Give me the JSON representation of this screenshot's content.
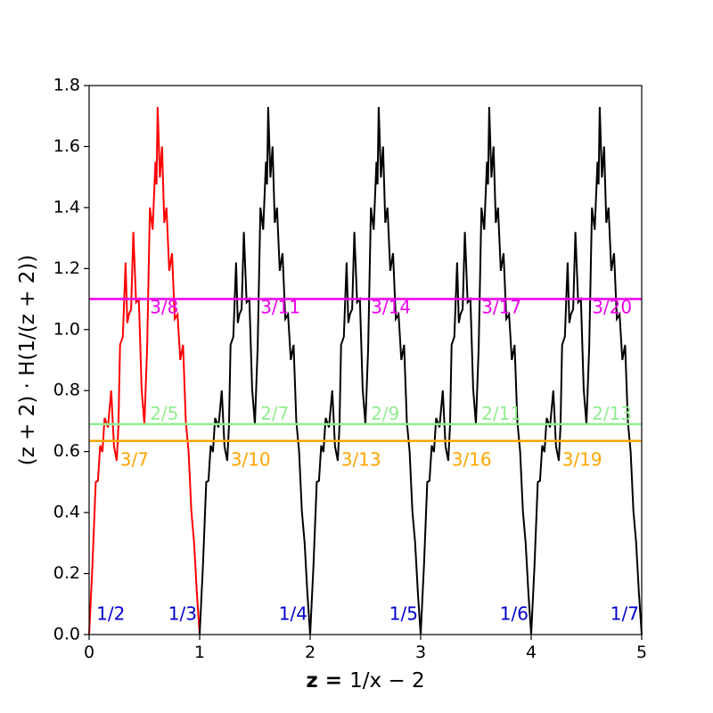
{
  "chart_data": {
    "type": "line",
    "title": "",
    "xlabel_prefix": "z = ",
    "xlabel_expr": "1/x − 2",
    "ylabel_expr": "(z + 2) · H(1/(z + 2))",
    "xlim": [
      0,
      5
    ],
    "ylim": [
      0,
      1.8
    ],
    "xticks": [
      "0",
      "1",
      "2",
      "3",
      "4",
      "5"
    ],
    "yticks": [
      "0.0",
      "0.2",
      "0.4",
      "0.6",
      "0.8",
      "1.0",
      "1.2",
      "1.4",
      "1.6",
      "1.8"
    ],
    "grid": false,
    "colors": {
      "first_period": "#ff0000",
      "other_periods": "#000000"
    },
    "curve_pattern": {
      "period": 1,
      "description_points_x": [
        0.0,
        0.06,
        0.1,
        0.14,
        0.2,
        0.25,
        0.28,
        0.33,
        0.36,
        0.4,
        0.45,
        0.5,
        0.55,
        0.6,
        0.62,
        0.66,
        0.7,
        0.75,
        0.8,
        0.85,
        0.9,
        0.95,
        1.0
      ],
      "description_points_y": [
        0.0,
        0.5,
        0.62,
        0.71,
        0.8,
        0.57,
        0.95,
        1.22,
        1.05,
        1.32,
        1.1,
        0.69,
        1.4,
        1.55,
        1.73,
        1.6,
        1.4,
        1.25,
        1.05,
        0.95,
        0.6,
        0.3,
        0.0
      ]
    },
    "hlines": [
      {
        "y": 1.1,
        "color": "#ee00ee",
        "labels": [
          "3/8",
          "3/11",
          "3/14",
          "3/17",
          "3/20"
        ],
        "label_x": [
          0.55,
          1.55,
          2.55,
          3.55,
          4.55
        ],
        "label_y": 1.07
      },
      {
        "y": 0.69,
        "color": "#90ee90",
        "labels": [
          "2/5",
          "2/7",
          "2/9",
          "2/11",
          "2/13"
        ],
        "label_x": [
          0.55,
          1.55,
          2.55,
          3.55,
          4.55
        ],
        "label_y": 0.72
      },
      {
        "y": 0.635,
        "color": "#ffa500",
        "labels": [
          "3/7",
          "3/10",
          "3/13",
          "3/16",
          "3/19"
        ],
        "label_x": [
          0.28,
          1.28,
          2.28,
          3.28,
          4.28
        ],
        "label_y": 0.57
      }
    ],
    "bottom_labels": {
      "color": "#0000cc",
      "labels": [
        "1/2",
        "1/3",
        "1/4",
        "1/5",
        "1/6",
        "1/7"
      ],
      "x": [
        0.05,
        0.7,
        1.7,
        2.7,
        3.7,
        4.7
      ],
      "y": 0.03
    }
  }
}
